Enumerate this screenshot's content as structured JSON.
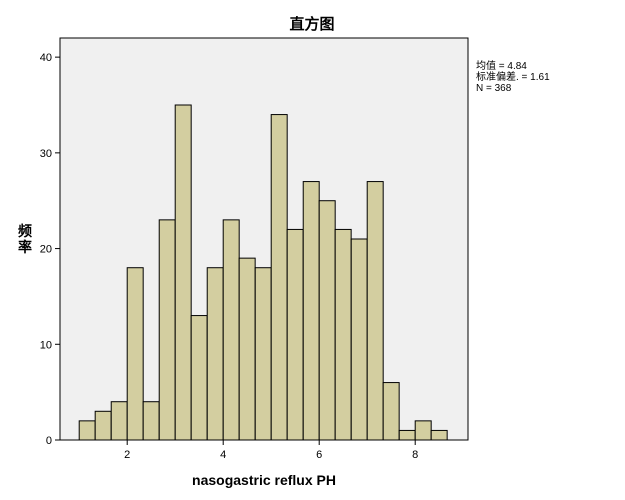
{
  "chart_data": {
    "type": "bar",
    "title": "直方图",
    "xlabel": "nasogastric reflux PH",
    "ylabel": "频率",
    "xlim": [
      0.6,
      9.1
    ],
    "ylim": [
      0,
      42
    ],
    "xticks": [
      2,
      4,
      6,
      8
    ],
    "yticks": [
      0,
      10,
      20,
      30,
      40
    ],
    "bin_width": 0.333,
    "bins": [
      {
        "start": 1.0,
        "count": 2
      },
      {
        "start": 1.333,
        "count": 3
      },
      {
        "start": 1.667,
        "count": 4
      },
      {
        "start": 2.0,
        "count": 18
      },
      {
        "start": 2.333,
        "count": 4
      },
      {
        "start": 2.667,
        "count": 23
      },
      {
        "start": 3.0,
        "count": 35
      },
      {
        "start": 3.333,
        "count": 13
      },
      {
        "start": 3.667,
        "count": 18
      },
      {
        "start": 4.0,
        "count": 23
      },
      {
        "start": 4.333,
        "count": 19
      },
      {
        "start": 4.667,
        "count": 18
      },
      {
        "start": 5.0,
        "count": 34
      },
      {
        "start": 5.333,
        "count": 22
      },
      {
        "start": 5.667,
        "count": 27
      },
      {
        "start": 6.0,
        "count": 25
      },
      {
        "start": 6.333,
        "count": 22
      },
      {
        "start": 6.667,
        "count": 21
      },
      {
        "start": 7.0,
        "count": 27
      },
      {
        "start": 7.333,
        "count": 6
      },
      {
        "start": 7.667,
        "count": 1
      },
      {
        "start": 8.0,
        "count": 2
      },
      {
        "start": 8.333,
        "count": 1
      }
    ],
    "stats": [
      "均值 = 4.84",
      "标准偏差. = 1.61",
      "N = 368"
    ],
    "grid": false,
    "colors": {
      "bar_fill": "#d3cea0",
      "bar_stroke": "#000000",
      "plot_bg": "#f0f0f0"
    }
  }
}
